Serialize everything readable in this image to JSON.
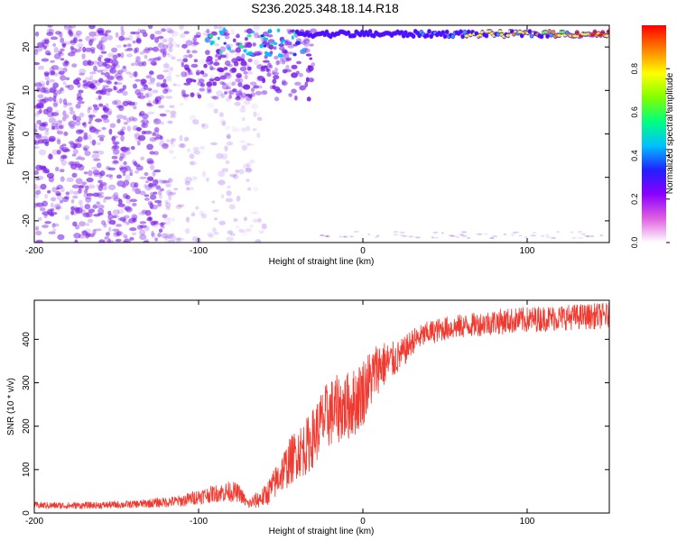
{
  "title": "S236.2025.348.18.14.R18",
  "colors": {
    "snr_line": "#f03a30",
    "spectrogram_purple": "#7a1fe8",
    "colormap": [
      "#ffffff",
      "#e060e0",
      "#8b00ff",
      "#2020ff",
      "#00bfff",
      "#00ff80",
      "#80ff00",
      "#ffff00",
      "#ff8000",
      "#ff0000"
    ]
  },
  "chart_data": [
    {
      "type": "heatmap",
      "title": "",
      "xlabel": "Height of straight line (km)",
      "ylabel": "Frequency (Hz)",
      "xlim": [
        -200,
        150
      ],
      "ylim": [
        -25,
        25
      ],
      "x_ticks": [
        -200,
        -100,
        0,
        100
      ],
      "y_ticks": [
        -20,
        -10,
        0,
        10,
        20
      ],
      "x_tick_labels": [
        "-200",
        "-100",
        "0",
        "100"
      ],
      "y_tick_labels": [
        "-20",
        "-10",
        "0",
        "10",
        "20"
      ],
      "colorbar": {
        "label": "Normalized spectral amplitude",
        "range": [
          0,
          1
        ],
        "ticks": [
          0.0,
          0.2,
          0.4,
          0.6,
          0.8
        ],
        "tick_labels": [
          "0.0",
          "0.2",
          "0.4",
          "0.6",
          "0.8"
        ]
      },
      "features": {
        "background_noise_x_range": [
          -200,
          -70
        ],
        "transition_x_range": [
          -70,
          -30
        ],
        "ridge_frequency_hz": 23,
        "ridge_x_range": [
          -40,
          150
        ],
        "ridge_peak_amplitude": 0.98
      }
    },
    {
      "type": "line",
      "title": "",
      "xlabel": "Height of straight line (km)",
      "ylabel": "SNR (10 * v/v)",
      "xlim": [
        -200,
        150
      ],
      "ylim": [
        0,
        490
      ],
      "x_ticks": [
        -200,
        -100,
        0,
        100
      ],
      "y_ticks": [
        0,
        100,
        200,
        300,
        400
      ],
      "x_tick_labels": [
        "-200",
        "-100",
        "0",
        "100"
      ],
      "y_tick_labels": [
        "0",
        "100",
        "200",
        "300",
        "400"
      ],
      "series": [
        {
          "x": [
            -200,
            -180,
            -160,
            -140,
            -120,
            -110,
            -100,
            -90,
            -80,
            -75,
            -70,
            -60,
            -55,
            -50,
            -45,
            -40,
            -35,
            -30,
            -25,
            -20,
            -15,
            -10,
            -5,
            0,
            5,
            10,
            15,
            20,
            25,
            30,
            40,
            50,
            60,
            70,
            80,
            90,
            100,
            110,
            120,
            130,
            140,
            150
          ],
          "values": [
            18,
            17,
            18,
            20,
            25,
            28,
            38,
            45,
            50,
            45,
            20,
            38,
            60,
            90,
            115,
            140,
            150,
            175,
            210,
            230,
            240,
            245,
            255,
            280,
            310,
            340,
            345,
            355,
            370,
            395,
            415,
            425,
            430,
            435,
            440,
            443,
            445,
            448,
            450,
            452,
            453,
            455
          ],
          "noise_amplitude": [
            8,
            8,
            8,
            9,
            12,
            14,
            18,
            20,
            25,
            20,
            12,
            25,
            35,
            45,
            55,
            60,
            65,
            70,
            75,
            80,
            80,
            80,
            80,
            80,
            70,
            60,
            50,
            40,
            35,
            30,
            28,
            28,
            28,
            28,
            30,
            30,
            30,
            30,
            30,
            30,
            30,
            30
          ]
        }
      ]
    }
  ]
}
